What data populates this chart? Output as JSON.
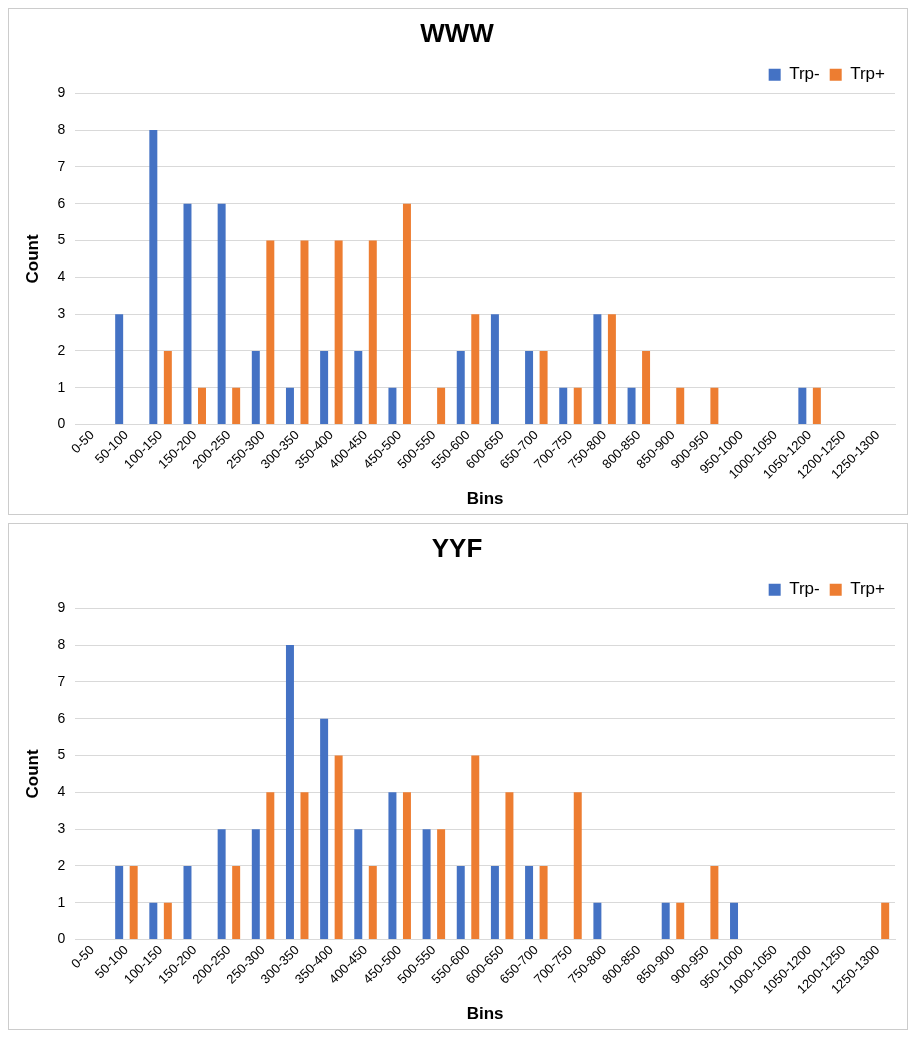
{
  "chart_data": [
    {
      "type": "bar",
      "title": "WWW",
      "xlabel": "Bins",
      "ylabel": "Count",
      "categories": [
        "0-50",
        "50-100",
        "100-150",
        "150-200",
        "200-250",
        "250-300",
        "300-350",
        "350-400",
        "400-450",
        "450-500",
        "500-550",
        "550-600",
        "600-650",
        "650-700",
        "700-750",
        "750-800",
        "800-850",
        "850-900",
        "900-950",
        "950-1000",
        "1000-1050",
        "1050-1200",
        "1200-1250",
        "1250-1300"
      ],
      "series": [
        {
          "name": "Trp-",
          "color": "#4472c4",
          "values": [
            0,
            3,
            8,
            6,
            6,
            2,
            1,
            2,
            2,
            1,
            0,
            2,
            3,
            2,
            1,
            3,
            1,
            0,
            0,
            0,
            0,
            1,
            0,
            0
          ]
        },
        {
          "name": "Trp+",
          "color": "#ed7d31",
          "values": [
            0,
            0,
            2,
            1,
            1,
            5,
            5,
            5,
            5,
            6,
            1,
            3,
            0,
            2,
            1,
            3,
            2,
            1,
            1,
            0,
            0,
            1,
            0,
            0
          ]
        }
      ],
      "ylim": [
        0,
        9
      ],
      "yticks": [
        0,
        1,
        2,
        3,
        4,
        5,
        6,
        7,
        8,
        9
      ],
      "grid": "y",
      "legend": "top right"
    },
    {
      "type": "bar",
      "title": "YYF",
      "xlabel": "Bins",
      "ylabel": "Count",
      "categories": [
        "0-50",
        "50-100",
        "100-150",
        "150-200",
        "200-250",
        "250-300",
        "300-350",
        "350-400",
        "400-450",
        "450-500",
        "500-550",
        "550-600",
        "600-650",
        "650-700",
        "700-750",
        "750-800",
        "800-850",
        "850-900",
        "900-950",
        "950-1000",
        "1000-1050",
        "1050-1200",
        "1200-1250",
        "1250-1300"
      ],
      "series": [
        {
          "name": "Trp-",
          "color": "#4472c4",
          "values": [
            0,
            2,
            1,
            2,
            3,
            3,
            8,
            6,
            3,
            4,
            3,
            2,
            2,
            2,
            0,
            1,
            0,
            1,
            0,
            1,
            0,
            0,
            0,
            0
          ]
        },
        {
          "name": "Trp+",
          "color": "#ed7d31",
          "values": [
            0,
            2,
            1,
            0,
            2,
            4,
            4,
            5,
            2,
            4,
            3,
            5,
            4,
            2,
            4,
            0,
            0,
            1,
            2,
            0,
            0,
            0,
            0,
            1
          ]
        }
      ],
      "ylim": [
        0,
        9
      ],
      "yticks": [
        0,
        1,
        2,
        3,
        4,
        5,
        6,
        7,
        8,
        9
      ],
      "grid": "y",
      "legend": "top right"
    }
  ]
}
